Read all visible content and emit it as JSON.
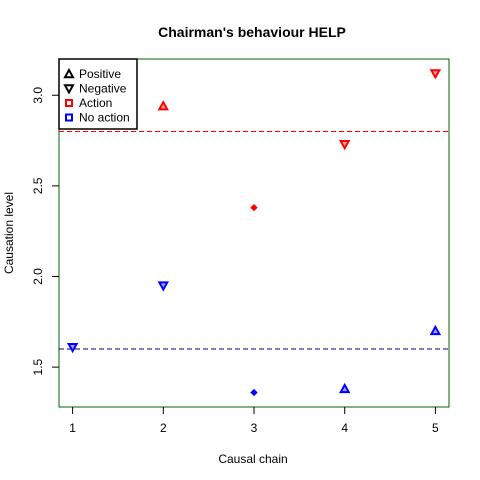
{
  "chart_data": {
    "type": "scatter",
    "title": "Chairman's behaviour HELP",
    "xlabel": "Causal chain",
    "ylabel": "Causation level",
    "xlim": [
      0.85,
      5.15
    ],
    "ylim": [
      1.28,
      3.2
    ],
    "x_ticks": [
      1,
      2,
      3,
      4,
      5
    ],
    "x_tick_labels": [
      "1",
      "2",
      "3",
      "4",
      "5"
    ],
    "y_ticks": [
      1.5,
      2.0,
      2.5,
      3.0
    ],
    "y_tick_labels": [
      "1.5",
      "2.0",
      "2.5",
      "3.0"
    ],
    "frame_color": "#006400",
    "legend": {
      "placement": "top-left",
      "entries": [
        {
          "label": "Positive",
          "marker": "triangle-up",
          "color": "#000000"
        },
        {
          "label": "Negative",
          "marker": "triangle-down",
          "color": "#000000"
        },
        {
          "label": "Action",
          "marker": "square",
          "color": "#ff0000"
        },
        {
          "label": "No action",
          "marker": "square",
          "color": "#0000ff"
        }
      ]
    },
    "reference_lines": [
      {
        "y": 2.8,
        "color": "#ff0000",
        "style": "dashed"
      },
      {
        "y": 1.6,
        "color": "#000080",
        "style": "dashed"
      }
    ],
    "points": [
      {
        "x": 1,
        "y": 1.61,
        "group": "No action",
        "marker": "triangle-down",
        "color": "#0000ff"
      },
      {
        "x": 2,
        "y": 2.94,
        "group": "Action",
        "marker": "triangle-up",
        "color": "#ff0000"
      },
      {
        "x": 2,
        "y": 1.95,
        "group": "No action",
        "marker": "triangle-down",
        "color": "#0000ff"
      },
      {
        "x": 3,
        "y": 2.38,
        "group": "Action",
        "marker": "diamond",
        "color": "#ff0000"
      },
      {
        "x": 3,
        "y": 1.36,
        "group": "No action",
        "marker": "diamond",
        "color": "#0000ff"
      },
      {
        "x": 4,
        "y": 2.73,
        "group": "Action",
        "marker": "triangle-down",
        "color": "#ff0000"
      },
      {
        "x": 4,
        "y": 1.38,
        "group": "No action",
        "marker": "triangle-up",
        "color": "#0000ff"
      },
      {
        "x": 5,
        "y": 3.12,
        "group": "Action",
        "marker": "triangle-down",
        "color": "#ff0000"
      },
      {
        "x": 5,
        "y": 1.7,
        "group": "No action",
        "marker": "triangle-up",
        "color": "#0000ff"
      }
    ]
  }
}
